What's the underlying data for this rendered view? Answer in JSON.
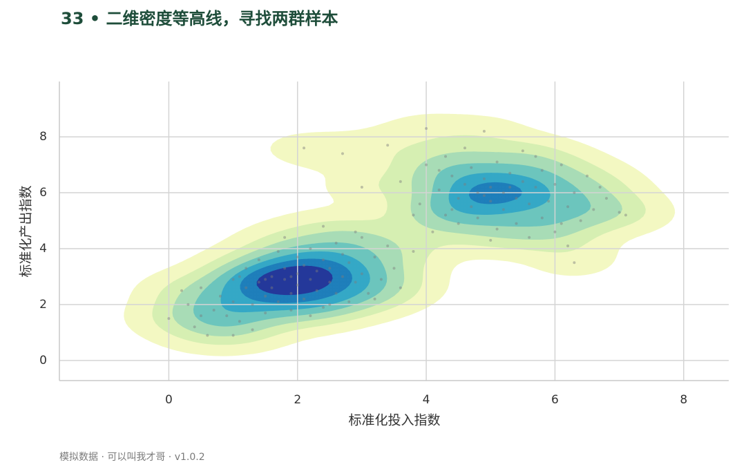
{
  "chart_data": {
    "type": "kde",
    "title": "33 • 二维密度等高线，寻找两群样本",
    "x_label": "标准化投入指数",
    "y_label": "标准化产出指数",
    "footer": "模拟数据 · 可以叫我才哥 · v1.0.2",
    "xlim": [
      -1.7,
      8.7
    ],
    "ylim": [
      -0.72,
      9.98
    ],
    "xticks": [
      0,
      2,
      4,
      6,
      8
    ],
    "yticks": [
      0,
      2,
      4,
      6,
      8
    ],
    "grid": true,
    "point_color": "#7d7d7d",
    "contour_colors": [
      "#f3f8c2",
      "#d6efb2",
      "#a8dcb6",
      "#6cc5bd",
      "#35a8c6",
      "#1f7fbb",
      "#24389a"
    ],
    "x": [
      0.0,
      0.3,
      0.4,
      0.5,
      0.6,
      0.7,
      0.8,
      0.9,
      1.0,
      1.0,
      1.1,
      1.2,
      1.2,
      1.3,
      1.3,
      1.4,
      1.4,
      1.5,
      1.5,
      1.6,
      1.6,
      1.7,
      1.7,
      1.8,
      1.8,
      1.9,
      1.9,
      2.0,
      2.0,
      2.0,
      2.1,
      2.1,
      2.2,
      2.2,
      2.3,
      2.3,
      2.4,
      2.4,
      2.5,
      2.5,
      2.6,
      2.6,
      2.7,
      2.7,
      2.8,
      2.8,
      2.9,
      3.0,
      3.0,
      3.1,
      3.2,
      3.3,
      3.4,
      3.5,
      3.6,
      3.8,
      2.1,
      2.7,
      1.0,
      0.5,
      1.8,
      2.2,
      1.5,
      2.5,
      1.1,
      2.9,
      3.2,
      0.2,
      2.4,
      1.9,
      3.6,
      3.9,
      4.0,
      4.1,
      4.2,
      4.3,
      4.3,
      4.4,
      4.5,
      4.5,
      4.6,
      4.6,
      4.7,
      4.7,
      4.8,
      4.8,
      4.9,
      4.9,
      5.0,
      5.0,
      5.1,
      5.1,
      5.2,
      5.2,
      5.3,
      5.4,
      5.4,
      5.5,
      5.5,
      5.6,
      5.7,
      5.8,
      5.8,
      5.9,
      6.0,
      6.0,
      6.1,
      6.2,
      6.3,
      6.3,
      6.4,
      6.5,
      6.6,
      6.8,
      7.0,
      7.1,
      4.0,
      3.4,
      3.0,
      4.4,
      5.6,
      6.2,
      6.7,
      4.9,
      5.3,
      4.2,
      3.8,
      5.0,
      6.1,
      5.7
    ],
    "y": [
      1.5,
      2.0,
      1.2,
      2.6,
      0.9,
      1.8,
      2.3,
      1.6,
      2.9,
      2.1,
      1.4,
      2.6,
      3.3,
      2.0,
      1.1,
      2.8,
      3.6,
      2.3,
      1.7,
      3.0,
      2.6,
      3.9,
      2.1,
      2.9,
      3.3,
      2.4,
      1.8,
      3.1,
      2.7,
      3.7,
      2.2,
      3.4,
      2.9,
      4.0,
      2.5,
      3.2,
      1.9,
      3.6,
      2.8,
      3.3,
      4.2,
      2.4,
      3.0,
      3.8,
      2.1,
      3.5,
      2.8,
      4.4,
      3.1,
      2.4,
      3.7,
      2.9,
      4.1,
      3.3,
      2.6,
      3.9,
      7.6,
      7.4,
      0.9,
      1.6,
      4.4,
      1.6,
      2.9,
      2.0,
      3.0,
      4.6,
      2.2,
      2.5,
      4.8,
      3.0,
      6.4,
      5.6,
      7.0,
      4.6,
      6.1,
      5.2,
      7.3,
      6.6,
      5.8,
      4.9,
      6.3,
      7.6,
      5.5,
      6.9,
      6.0,
      5.1,
      6.5,
      8.2,
      5.7,
      6.2,
      4.7,
      7.1,
      6.0,
      5.4,
      6.7,
      5.8,
      4.9,
      6.4,
      7.5,
      5.6,
      6.2,
      5.1,
      6.8,
      5.7,
      6.3,
      4.6,
      7.0,
      5.5,
      6.0,
      3.5,
      5.0,
      6.6,
      5.4,
      5.8,
      5.3,
      5.2,
      8.3,
      7.7,
      6.2,
      5.4,
      4.4,
      4.1,
      6.2,
      5.9,
      6.2,
      6.8,
      5.2,
      4.3,
      4.9,
      7.3
    ]
  }
}
